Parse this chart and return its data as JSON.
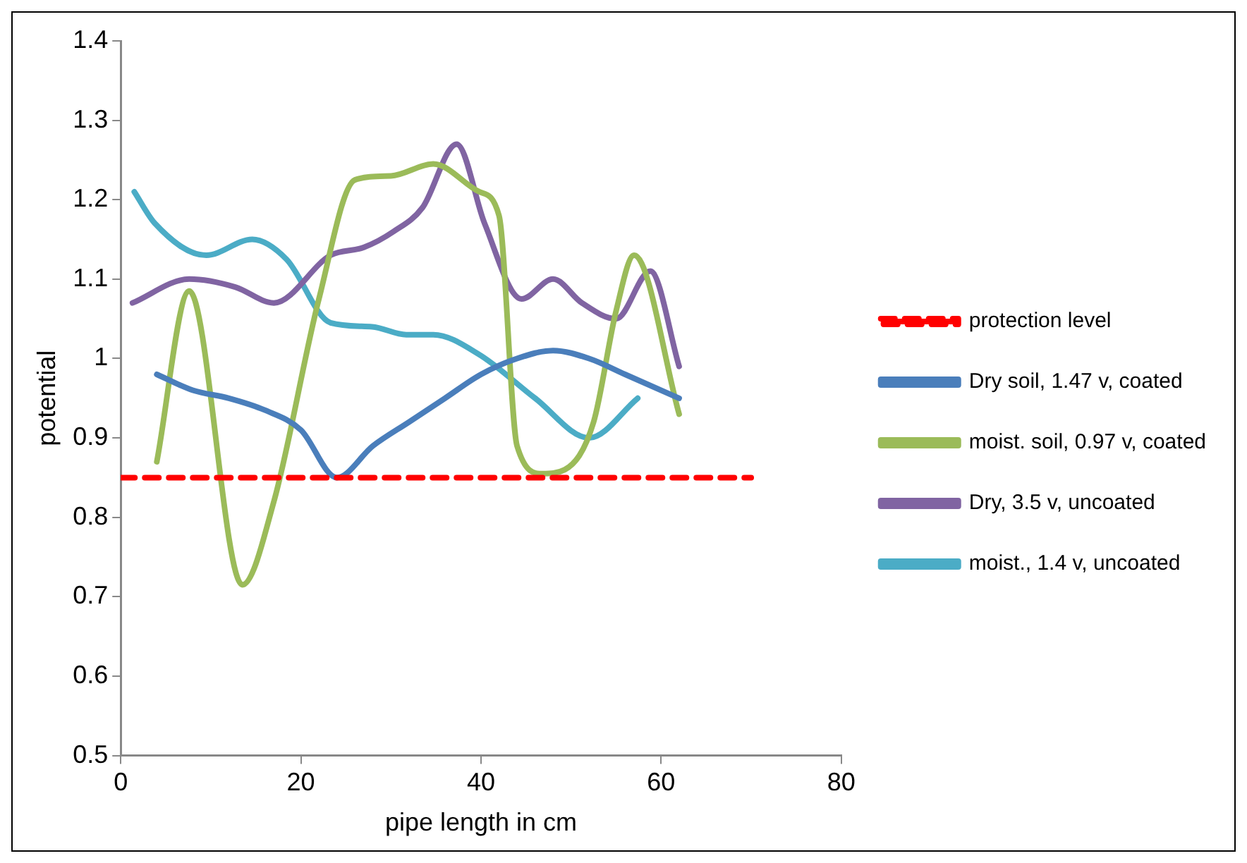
{
  "chart_data": {
    "type": "line",
    "xlabel": "pipe length in cm",
    "ylabel": "potential",
    "xlim": [
      0,
      80
    ],
    "xticks": [
      0,
      20,
      40,
      60,
      80
    ],
    "ylim": [
      0.5,
      1.4
    ],
    "yticks": [
      0.5,
      0.6,
      0.7,
      0.8,
      0.9,
      1,
      1.1,
      1.2,
      1.3,
      1.4
    ],
    "grid": false,
    "legend": "right",
    "marker": "none",
    "line_style": "solid",
    "series": [
      {
        "name": "protection level",
        "color": "#ff0000",
        "line_style": "dashed",
        "x": [
          0,
          70
        ],
        "values": [
          0.85,
          0.85
        ]
      },
      {
        "name": "Dry soil, 1.47 v, coated",
        "color": "#4a7ebb",
        "x": [
          4,
          8,
          12,
          16,
          20,
          24,
          28,
          32,
          36,
          40,
          44,
          48,
          52,
          56,
          62
        ],
        "values": [
          0.98,
          0.96,
          0.95,
          0.935,
          0.91,
          0.85,
          0.89,
          0.92,
          0.95,
          0.98,
          1.0,
          1.01,
          1.0,
          0.98,
          0.95
        ]
      },
      {
        "name": "moist. soil, 0.97 v, coated",
        "color": "#9bbb59",
        "x": [
          4,
          7.6,
          13.5,
          17,
          22,
          26,
          30,
          34.7,
          39.8,
          42,
          44,
          46.8,
          49.3,
          52.5,
          55,
          57,
          62
        ],
        "values": [
          0.87,
          1.085,
          0.715,
          0.82,
          1.075,
          1.225,
          1.23,
          1.245,
          1.21,
          1.18,
          0.89,
          0.855,
          0.86,
          0.92,
          1.06,
          1.13,
          0.93
        ]
      },
      {
        "name": "Dry, 3.5 v, uncoated",
        "color": "#8064a2",
        "x": [
          1.3,
          7.6,
          12.7,
          17,
          23.3,
          27,
          30.3,
          33.5,
          37.3,
          40.4,
          44.5,
          48,
          51.2,
          55,
          58.8,
          62
        ],
        "values": [
          1.07,
          1.1,
          1.09,
          1.07,
          1.13,
          1.14,
          1.16,
          1.19,
          1.27,
          1.17,
          1.075,
          1.1,
          1.07,
          1.05,
          1.11,
          0.99
        ]
      },
      {
        "name": "moist., 1.4 v, uncoated",
        "color": "#4bacc6",
        "x": [
          1.5,
          3.8,
          9.5,
          14.6,
          18.4,
          23.3,
          27.9,
          31.7,
          34.7,
          39.8,
          46,
          52,
          57.4
        ],
        "values": [
          1.21,
          1.17,
          1.13,
          1.15,
          1.125,
          1.045,
          1.04,
          1.03,
          1.03,
          1.005,
          0.95,
          0.9,
          0.95
        ]
      }
    ]
  }
}
